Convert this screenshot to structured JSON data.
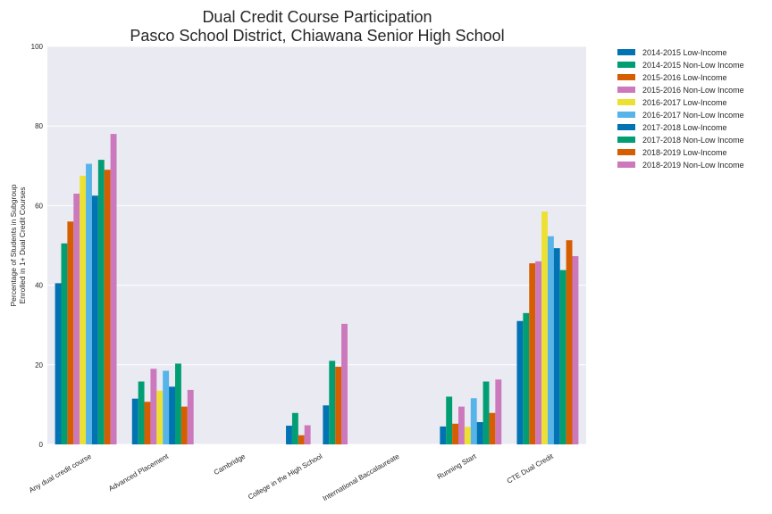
{
  "chart_data": {
    "type": "bar",
    "title": [
      "Dual Credit Course Participation",
      "Pasco School District, Chiawana Senior High School"
    ],
    "xlabel": "",
    "ylabel": [
      "Percentage of Students in Subgroup",
      "Enrolled in 1+ Dual Credit Courses"
    ],
    "ylim": [
      0,
      100
    ],
    "yticks": [
      0,
      20,
      40,
      60,
      80,
      100
    ],
    "grid": true,
    "legend_position": "outside-top-right",
    "categories": [
      "Any dual credit course",
      "Advanced Placement",
      "Cambridge",
      "College in the High School",
      "International Baccalaureate",
      "Running Start",
      "CTE Dual Credit"
    ],
    "series": [
      {
        "name": "2014-2015 Low-Income",
        "color": "#0173b2",
        "values": [
          40.5,
          11.5,
          0,
          4.7,
          0,
          4.5,
          31.0
        ]
      },
      {
        "name": "2014-2015 Non-Low Income",
        "color": "#029e73",
        "values": [
          50.5,
          15.8,
          0,
          7.9,
          0,
          12.0,
          33.0
        ]
      },
      {
        "name": "2015-2016 Low-Income",
        "color": "#d55e00",
        "values": [
          56.0,
          10.7,
          0,
          2.3,
          0,
          5.2,
          45.5
        ]
      },
      {
        "name": "2015-2016 Non-Low Income",
        "color": "#cc78bc",
        "values": [
          63.0,
          19.0,
          0,
          4.8,
          0,
          9.5,
          46.0
        ]
      },
      {
        "name": "2016-2017 Low-Income",
        "color": "#ece133",
        "values": [
          67.5,
          13.5,
          0,
          0,
          0,
          4.4,
          58.5
        ]
      },
      {
        "name": "2016-2017 Non-Low Income",
        "color": "#56b4e9",
        "values": [
          70.5,
          18.5,
          0,
          0,
          0,
          11.6,
          52.3
        ]
      },
      {
        "name": "2017-2018 Low-Income",
        "color": "#0173b2",
        "values": [
          62.5,
          14.5,
          0,
          9.8,
          0,
          5.6,
          49.3
        ]
      },
      {
        "name": "2017-2018 Non-Low Income",
        "color": "#029e73",
        "values": [
          71.5,
          20.3,
          0,
          21.0,
          0,
          15.8,
          43.8
        ]
      },
      {
        "name": "2018-2019 Low-Income",
        "color": "#d55e00",
        "values": [
          69.0,
          9.5,
          0,
          19.5,
          0,
          7.9,
          51.3
        ]
      },
      {
        "name": "2018-2019 Non-Low Income",
        "color": "#cc78bc",
        "values": [
          78.0,
          13.7,
          0,
          30.3,
          0,
          16.3,
          47.3
        ]
      }
    ]
  }
}
